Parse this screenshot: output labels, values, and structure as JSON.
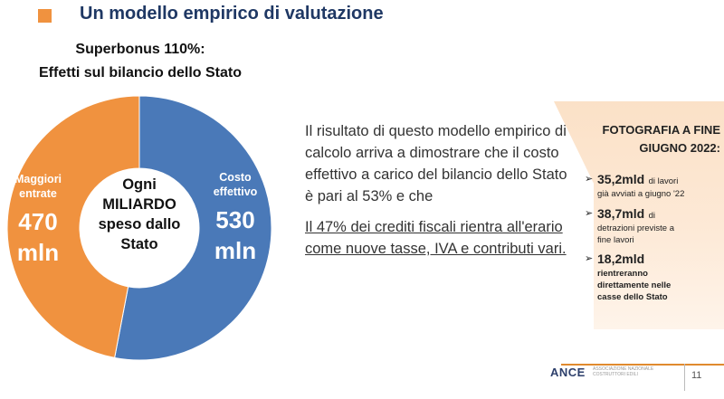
{
  "slide": {
    "title": "Un modello empirico di valutazione",
    "bullet_color": "#f0923f",
    "title_color": "#1f3864"
  },
  "chart_data": {
    "type": "pie",
    "subtype": "donut",
    "title_lines": [
      "Superbonus 110%:",
      "Effetti sul bilancio dello Stato"
    ],
    "center_text": "Ogni\nMILIARDO\nspeso dallo\nStato",
    "slices": [
      {
        "name": "Costo\neffettivo",
        "value": 530,
        "value_label": "530\nmln",
        "color": "#4a79b8"
      },
      {
        "name": "Maggiori\nentrate",
        "value": 470,
        "value_label": "470\nmln",
        "color": "#f0923f"
      }
    ],
    "unit": "mln"
  },
  "main_text": {
    "paragraph": "Il risultato di questo modello empirico di calcolo arriva a dimostrare che il costo effettivo a carico del bilancio dello Stato è pari al 53% e che",
    "underlined": "Il 47% dei crediti fiscali rientra all'erario come nuove tasse, IVA e contributi vari."
  },
  "photo_panel": {
    "title": "FOTOGRAFIA A FINE\nGIUGNO 2022:",
    "bullet_icon": "arrow-right-icon",
    "items": [
      {
        "value": "35,2mld",
        "inline": "di lavori",
        "rest": "già avviati a giugno '22"
      },
      {
        "value": "38,7mld",
        "inline": "di",
        "rest": "detrazioni previste a\nfine lavori"
      },
      {
        "value": "18,2mld",
        "inline": "",
        "rest": "rientreranno\ndirettamente nelle\ncasse dello Stato"
      }
    ]
  },
  "footer": {
    "logo": "ANCE",
    "logo_sub": "ASSOCIAZIONE NAZIONALE\nCOSTRUTTORI EDILI",
    "page_number": "11"
  }
}
